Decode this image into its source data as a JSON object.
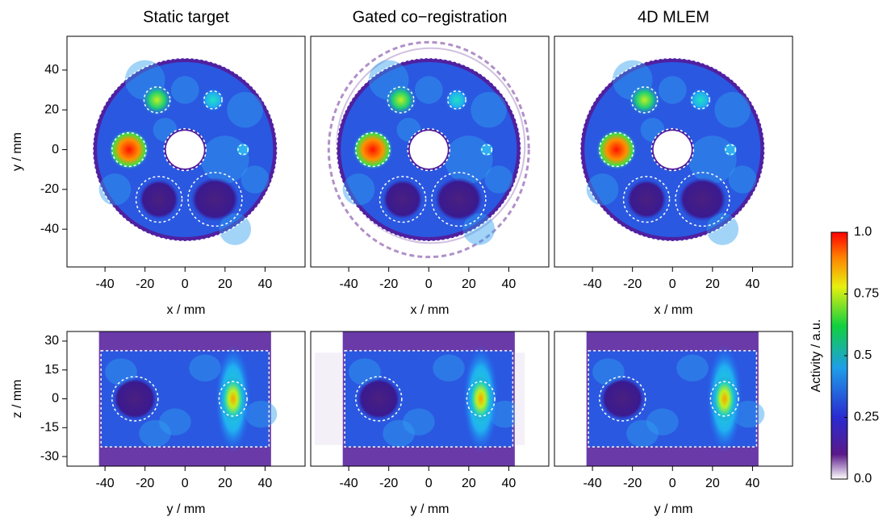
{
  "chart_data": [
    {
      "type": "heatmap",
      "title": "Static target",
      "xlabel": "x / mm",
      "ylabel": "y / mm",
      "xlim": [
        -59,
        60
      ],
      "xticks": [
        -40,
        -20,
        0,
        20,
        40
      ],
      "ylim": [
        -59,
        57
      ],
      "yticks": [
        -40,
        -20,
        0,
        20,
        40
      ]
    },
    {
      "type": "heatmap",
      "title": "Gated co−registration",
      "xlabel": "x / mm",
      "xlim": [
        -59,
        60
      ],
      "xticks": [
        -40,
        -20,
        0,
        20,
        40
      ],
      "ylim": [
        -59,
        57
      ]
    },
    {
      "type": "heatmap",
      "title": "4D MLEM",
      "xlabel": "x / mm",
      "xlim": [
        -59,
        60
      ],
      "xticks": [
        -40,
        -20,
        0,
        20,
        40
      ],
      "ylim": [
        -59,
        57
      ]
    },
    {
      "type": "heatmap-side",
      "xlabel": "y / mm",
      "ylabel": "z / mm",
      "xlim": [
        -59,
        60
      ],
      "xticks": [
        -40,
        -20,
        0,
        20,
        40
      ],
      "ylim": [
        -35,
        35
      ],
      "yticks": [
        -30,
        -15,
        0,
        15,
        30
      ]
    },
    {
      "type": "heatmap-side",
      "xlabel": "y / mm",
      "xlim": [
        -59,
        60
      ],
      "xticks": [
        -40,
        -20,
        0,
        20,
        40
      ],
      "ylim": [
        -35,
        35
      ]
    },
    {
      "type": "heatmap-side",
      "xlabel": "y / mm",
      "xlim": [
        -59,
        60
      ],
      "xticks": [
        -40,
        -20,
        0,
        20,
        40
      ],
      "ylim": [
        -35,
        35
      ]
    }
  ],
  "colorbar": {
    "label": "Activity / a.u.",
    "ylim": [
      0,
      1
    ],
    "yticks": [
      {
        "value": 0,
        "label": "0.0"
      },
      0.25,
      0.5,
      0.75,
      {
        "value": 1,
        "label": "1.0"
      }
    ]
  }
}
